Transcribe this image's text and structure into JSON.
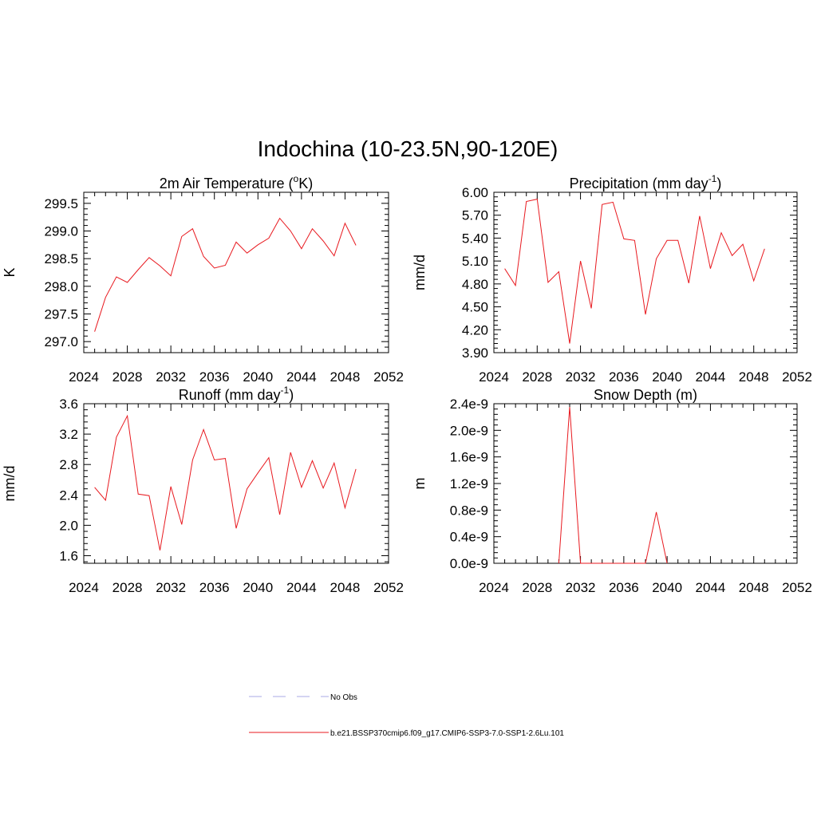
{
  "main_title": "Indochina (10-23.5N,90-120E)",
  "colors": {
    "model_line": "#e8191f",
    "obs_line": "#a9a9e6"
  },
  "legend": {
    "obs_label": "No Obs",
    "model_label": "b.e21.BSSP370cmip6.f09_g17.CMIP6-SSP3-7.0-SSP1-2.6Lu.101"
  },
  "chart_data": [
    {
      "type": "line",
      "title_main": "2m Air Temperature (",
      "title_sup": "o",
      "title_rest": "K)",
      "ylabel": "K",
      "xlim": [
        2024,
        2052
      ],
      "x_ticks": [
        "2024",
        "2028",
        "2032",
        "2036",
        "2040",
        "2044",
        "2048",
        "2052"
      ],
      "ylim": [
        296.8,
        299.7
      ],
      "y_ticks": [
        "297.0",
        "297.5",
        "298.0",
        "298.5",
        "299.0",
        "299.5"
      ],
      "x": [
        2025,
        2026,
        2027,
        2028,
        2029,
        2030,
        2031,
        2032,
        2033,
        2034,
        2035,
        2036,
        2037,
        2038,
        2039,
        2040,
        2041,
        2042,
        2043,
        2044,
        2045,
        2046,
        2047,
        2048,
        2049
      ],
      "values": [
        297.18,
        297.8,
        298.17,
        298.07,
        298.3,
        298.52,
        298.37,
        298.19,
        298.9,
        299.04,
        298.54,
        298.33,
        298.38,
        298.8,
        298.6,
        298.75,
        298.87,
        299.23,
        299.0,
        298.68,
        299.04,
        298.82,
        298.55,
        299.14,
        298.74
      ]
    },
    {
      "type": "line",
      "title_main": "Precipitation (mm day",
      "title_sup": "-1",
      "title_rest": ")",
      "ylabel": "mm/d",
      "xlim": [
        2024,
        2052
      ],
      "x_ticks": [
        "2024",
        "2028",
        "2032",
        "2036",
        "2040",
        "2044",
        "2048",
        "2052"
      ],
      "ylim": [
        3.9,
        6.0
      ],
      "y_ticks": [
        "3.90",
        "4.20",
        "4.50",
        "4.80",
        "5.10",
        "5.40",
        "5.70",
        "6.00"
      ],
      "x": [
        2025,
        2026,
        2027,
        2028,
        2029,
        2030,
        2031,
        2032,
        2033,
        2034,
        2035,
        2036,
        2037,
        2038,
        2039,
        2040,
        2041,
        2042,
        2043,
        2044,
        2045,
        2046,
        2047,
        2048,
        2049
      ],
      "values": [
        5.0,
        4.78,
        5.88,
        5.91,
        4.82,
        4.96,
        4.02,
        5.1,
        4.48,
        5.84,
        5.87,
        5.39,
        5.37,
        4.4,
        5.13,
        5.37,
        5.37,
        4.81,
        5.69,
        5.0,
        5.47,
        5.17,
        5.32,
        4.84,
        5.26
      ]
    },
    {
      "type": "line",
      "title_main": "Runoff (mm day",
      "title_sup": "-1",
      "title_rest": ")",
      "ylabel": "mm/d",
      "xlim": [
        2024,
        2052
      ],
      "x_ticks": [
        "2024",
        "2028",
        "2032",
        "2036",
        "2040",
        "2044",
        "2048",
        "2052"
      ],
      "ylim": [
        1.5,
        3.6
      ],
      "y_ticks": [
        "1.6",
        "2.0",
        "2.4",
        "2.8",
        "3.2",
        "3.6"
      ],
      "x": [
        2025,
        2026,
        2027,
        2028,
        2029,
        2030,
        2031,
        2032,
        2033,
        2034,
        2035,
        2036,
        2037,
        2038,
        2039,
        2040,
        2041,
        2042,
        2043,
        2044,
        2045,
        2046,
        2047,
        2048,
        2049
      ],
      "values": [
        2.5,
        2.33,
        3.16,
        3.44,
        2.41,
        2.39,
        1.67,
        2.51,
        2.01,
        2.86,
        3.26,
        2.86,
        2.88,
        1.96,
        2.48,
        2.69,
        2.89,
        2.14,
        2.96,
        2.5,
        2.85,
        2.49,
        2.82,
        2.23,
        2.74
      ]
    },
    {
      "type": "line",
      "title_main": "Snow Depth (m)",
      "title_sup": "",
      "title_rest": "",
      "ylabel": "m",
      "xlim": [
        2024,
        2052
      ],
      "x_ticks": [
        "2024",
        "2028",
        "2032",
        "2036",
        "2040",
        "2044",
        "2048",
        "2052"
      ],
      "ylim": [
        0,
        2.4e-09
      ],
      "y_ticks": [
        "0.0e-9",
        "0.4e-9",
        "0.8e-9",
        "1.2e-9",
        "1.6e-9",
        "2.0e-9",
        "2.4e-9"
      ],
      "x": [
        2030,
        2031,
        2032,
        2038,
        2039,
        2040
      ],
      "values": [
        0,
        2.35e-09,
        0,
        0,
        7.7e-10,
        0
      ]
    }
  ]
}
